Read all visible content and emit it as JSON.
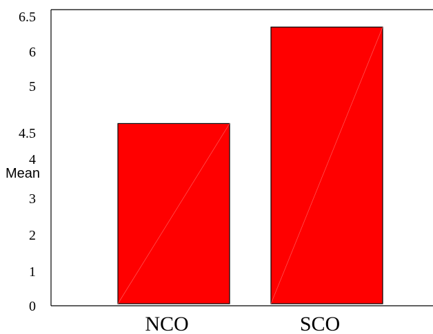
{
  "chart_data": {
    "type": "bar",
    "categories": [
      "NCO",
      "SCO"
    ],
    "values": [
      4.6,
      6.35
    ],
    "ylabel": "Mean",
    "xlabel": "",
    "y_ticks": [
      {
        "label": "0",
        "value": 0
      },
      {
        "label": "1",
        "value": 1
      },
      {
        "label": "2",
        "value": 2
      },
      {
        "label": "3",
        "value": 3
      },
      {
        "label": "4",
        "value": 4
      },
      {
        "label": "4.5",
        "value": 4.5
      },
      {
        "label": "5",
        "value": 5
      },
      {
        "label": "6",
        "value": 6
      },
      {
        "label": "6.5",
        "value": 6.5
      }
    ],
    "bar_color": "#ff0000",
    "grid": false,
    "legend": "none"
  }
}
